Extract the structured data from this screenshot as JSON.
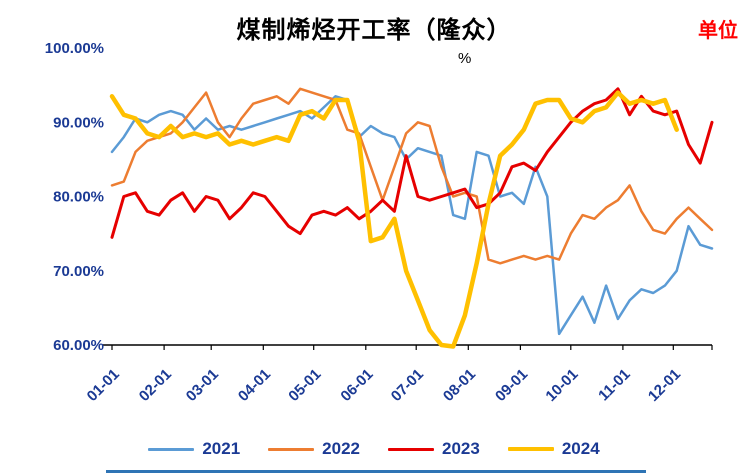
{
  "header": {
    "title": "煤制烯烃开工率（隆众）",
    "unit_label": "单位",
    "axis_unit": "%"
  },
  "colors": {
    "label_blue": "#1B3A94",
    "axis_black": "#000000",
    "unit_red": "#FF0000",
    "bottom_rule_blue": "#2E74B5",
    "series_2021": "#5B9BD5",
    "series_2022": "#ED7D31",
    "series_2023": "#E60000",
    "series_2024": "#FFC000"
  },
  "chart_data": {
    "type": "line",
    "title": "煤制烯烃开工率（隆众）",
    "ylabel": "%",
    "ylim": [
      60,
      100
    ],
    "y_ticks": [
      "100.00%",
      "90.00%",
      "80.00%",
      "70.00%",
      "60.00%"
    ],
    "y_tick_values": [
      100,
      90,
      80,
      70,
      60
    ],
    "x_ticks": [
      "01-01",
      "02-01",
      "03-01",
      "04-01",
      "05-01",
      "06-01",
      "07-01",
      "08-01",
      "09-01",
      "10-01",
      "11-01",
      "12-01"
    ],
    "x_frequency": "weekly",
    "grid": false,
    "legend_position": "bottom",
    "series": [
      {
        "name": "2021",
        "color": "#5B9BD5",
        "line_width": 2.5,
        "values": [
          86.0,
          88.0,
          90.5,
          90.0,
          91.0,
          91.5,
          91.0,
          89.0,
          90.5,
          89.0,
          89.5,
          89.0,
          89.5,
          90.0,
          90.5,
          91.0,
          91.5,
          90.5,
          92.0,
          93.5,
          93.0,
          88.0,
          89.5,
          88.5,
          88.0,
          85.0,
          86.5,
          86.0,
          85.5,
          77.5,
          77.0,
          86.0,
          85.5,
          80.0,
          80.5,
          79.0,
          84.0,
          80.0,
          61.5,
          64.0,
          66.5,
          63.0,
          68.0,
          63.5,
          66.0,
          67.5,
          67.0,
          68.0,
          70.0,
          76.0,
          73.5,
          73.0
        ]
      },
      {
        "name": "2022",
        "color": "#ED7D31",
        "line_width": 2.5,
        "values": [
          81.5,
          82.0,
          86.0,
          87.5,
          88.0,
          88.5,
          90.0,
          92.0,
          94.0,
          90.0,
          88.0,
          90.5,
          92.5,
          93.0,
          93.5,
          92.5,
          94.5,
          94.0,
          93.5,
          93.0,
          89.0,
          88.5,
          84.0,
          79.5,
          84.0,
          88.5,
          90.0,
          89.5,
          84.0,
          80.0,
          80.5,
          80.0,
          71.5,
          71.0,
          71.5,
          72.0,
          71.5,
          72.0,
          71.5,
          75.0,
          77.5,
          77.0,
          78.5,
          79.5,
          81.5,
          78.0,
          75.5,
          75.0,
          77.0,
          78.5,
          77.0,
          75.5
        ]
      },
      {
        "name": "2023",
        "color": "#E60000",
        "line_width": 3,
        "values": [
          74.5,
          80.0,
          80.5,
          78.0,
          77.5,
          79.5,
          80.5,
          78.0,
          80.0,
          79.5,
          77.0,
          78.5,
          80.5,
          80.0,
          78.0,
          76.0,
          75.0,
          77.5,
          78.0,
          77.5,
          78.5,
          77.0,
          78.0,
          79.5,
          78.0,
          85.5,
          80.0,
          79.5,
          80.0,
          80.5,
          81.0,
          78.5,
          79.0,
          80.5,
          84.0,
          84.5,
          83.5,
          86.0,
          88.0,
          90.0,
          91.5,
          92.5,
          93.0,
          94.5,
          91.0,
          93.5,
          91.5,
          91.0,
          91.5,
          87.0,
          84.5,
          90.0
        ]
      },
      {
        "name": "2024",
        "color": "#FFC000",
        "line_width": 4.5,
        "values": [
          93.5,
          91.0,
          90.5,
          88.5,
          88.0,
          89.5,
          88.0,
          88.5,
          88.0,
          88.5,
          87.0,
          87.5,
          87.0,
          87.5,
          88.0,
          87.5,
          91.0,
          91.5,
          90.5,
          93.0,
          93.0,
          87.5,
          74.0,
          74.5,
          77.0,
          70.0,
          66.0,
          62.0,
          60.0,
          59.8,
          64.0,
          71.0,
          79.0,
          85.5,
          87.0,
          89.0,
          92.5,
          93.0,
          93.0,
          90.5,
          90.0,
          91.5,
          92.0,
          94.0,
          92.5,
          93.0,
          92.5,
          93.0,
          89.0
        ]
      }
    ]
  }
}
